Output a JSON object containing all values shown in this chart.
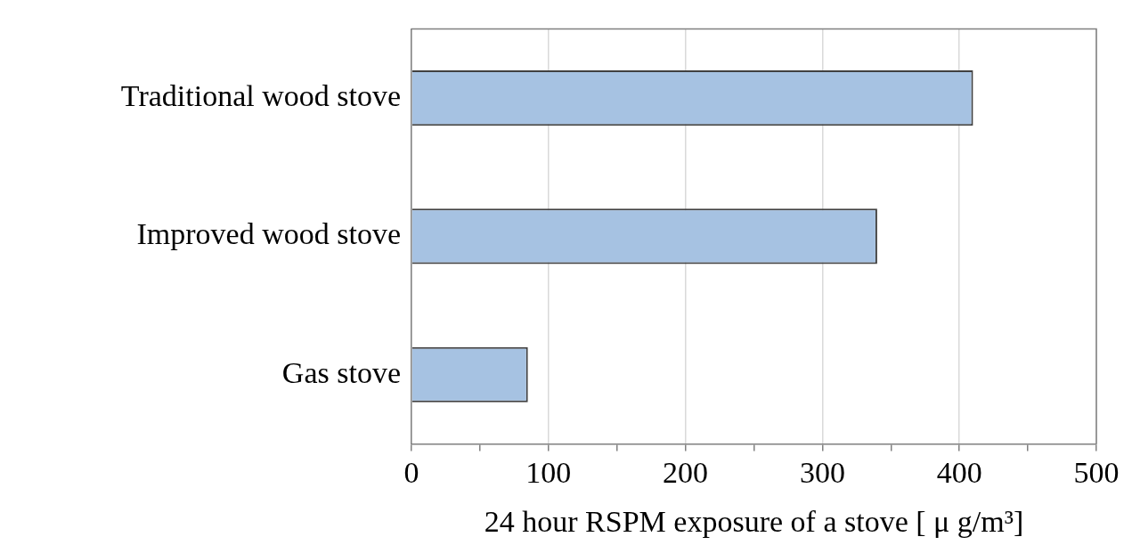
{
  "chart_data": {
    "type": "bar",
    "orientation": "horizontal",
    "categories": [
      "Traditional wood stove",
      "Improved wood stove",
      "Gas stove"
    ],
    "values": [
      410,
      340,
      85
    ],
    "color": "#a6c2e2",
    "xlabel": "24 hour RSPM exposure of a stove [ μ g/m³]",
    "xlim": [
      0,
      500
    ],
    "xticks": [
      0,
      {
        "value": 50,
        "label": null
      },
      100,
      {
        "value": 150,
        "label": null
      },
      200,
      {
        "value": 250,
        "label": null
      },
      300,
      {
        "value": 350,
        "label": null
      },
      400,
      {
        "value": 450,
        "label": null
      },
      500
    ],
    "grid": "x",
    "legend": false
  }
}
